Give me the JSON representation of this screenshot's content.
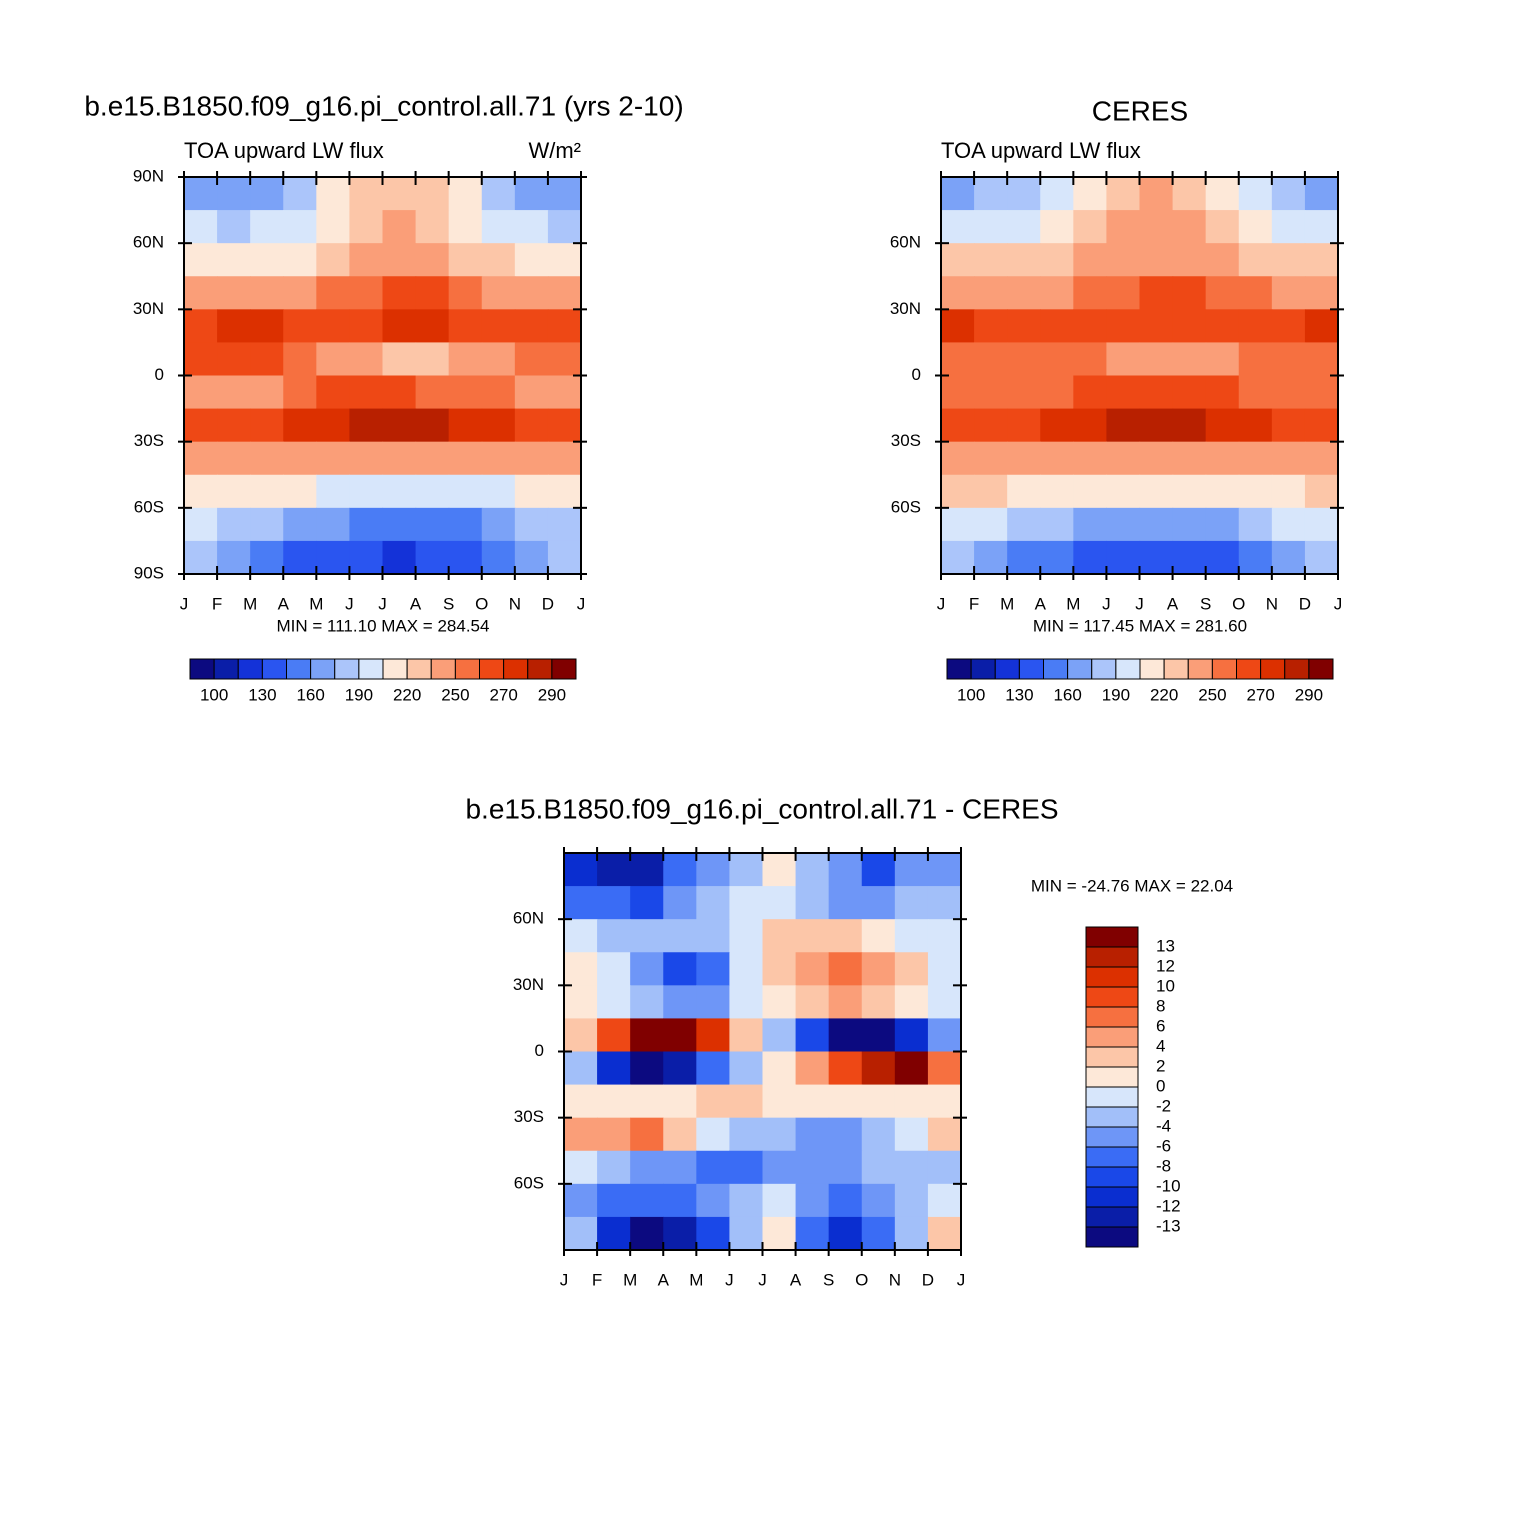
{
  "chart_data": [
    {
      "type": "heatmap",
      "title": "b.e15.B1850.f09_g16.pi_control.all.71 (yrs 2-10)",
      "subtitle_left": "TOA upward LW flux",
      "subtitle_right": "W/m²",
      "stats": "MIN = 111.10 MAX = 284.54",
      "xlim": [
        0,
        12
      ],
      "ylim": [
        -90,
        90
      ],
      "xticks": [
        {
          "value": 0,
          "label": "J"
        },
        {
          "value": 1,
          "label": "F"
        },
        {
          "value": 2,
          "label": "M"
        },
        {
          "value": 3,
          "label": "A"
        },
        {
          "value": 4,
          "label": "M"
        },
        {
          "value": 5,
          "label": "J"
        },
        {
          "value": 6,
          "label": "J"
        },
        {
          "value": 7,
          "label": "A"
        },
        {
          "value": 8,
          "label": "S"
        },
        {
          "value": 9,
          "label": "O"
        },
        {
          "value": 10,
          "label": "N"
        },
        {
          "value": 11,
          "label": "D"
        },
        {
          "value": 12,
          "label": "J"
        }
      ],
      "yticks": [
        {
          "value": 90,
          "label": "90N"
        },
        {
          "value": 60,
          "label": "60N"
        },
        {
          "value": 30,
          "label": "30N"
        },
        {
          "value": 0,
          "label": "0"
        },
        {
          "value": -30,
          "label": "30S"
        },
        {
          "value": -60,
          "label": "60S"
        },
        {
          "value": -90,
          "label": "90S"
        }
      ],
      "x": [
        0.5,
        1.5,
        2.5,
        3.5,
        4.5,
        5.5,
        6.5,
        7.5,
        8.5,
        9.5,
        10.5,
        11.5
      ],
      "y": [
        82.5,
        67.5,
        52.5,
        37.5,
        22.5,
        7.5,
        -7.5,
        -22.5,
        -37.5,
        -52.5,
        -67.5,
        -82.5
      ],
      "values": [
        [
          165,
          160,
          165,
          180,
          205,
          225,
          230,
          225,
          205,
          185,
          170,
          165
        ],
        [
          190,
          185,
          190,
          200,
          215,
          230,
          235,
          230,
          215,
          200,
          190,
          188
        ],
        [
          215,
          212,
          212,
          218,
          228,
          238,
          242,
          240,
          232,
          222,
          216,
          215
        ],
        [
          240,
          240,
          240,
          243,
          250,
          258,
          262,
          262,
          255,
          248,
          243,
          241
        ],
        [
          268,
          270,
          272,
          268,
          266,
          266,
          270,
          270,
          268,
          266,
          265,
          266
        ],
        [
          262,
          265,
          262,
          255,
          246,
          238,
          232,
          234,
          240,
          248,
          254,
          258
        ],
        [
          245,
          242,
          245,
          255,
          262,
          262,
          260,
          258,
          255,
          250,
          248,
          246
        ],
        [
          262,
          265,
          266,
          272,
          276,
          282,
          282,
          281,
          276,
          270,
          266,
          263
        ],
        [
          245,
          245,
          242,
          240,
          238,
          238,
          238,
          238,
          240,
          242,
          244,
          245
        ],
        [
          215,
          212,
          210,
          205,
          200,
          198,
          196,
          196,
          198,
          202,
          208,
          212
        ],
        [
          190,
          180,
          175,
          165,
          160,
          158,
          155,
          155,
          158,
          165,
          175,
          185
        ],
        [
          180,
          165,
          150,
          140,
          135,
          130,
          128,
          130,
          135,
          145,
          160,
          175
        ]
      ],
      "colorbar": {
        "orientation": "horizontal",
        "ticks": [
          100,
          130,
          160,
          190,
          220,
          250,
          270,
          290
        ],
        "colors": [
          "#0c0a80",
          "#0a1ea8",
          "#1432d8",
          "#2a55f0",
          "#4a7cf5",
          "#7ba2f7",
          "#abc5fa",
          "#d7e6fb",
          "#fde8d8",
          "#fcc6a8",
          "#fa9e78",
          "#f67040",
          "#ee4815",
          "#dc3000",
          "#b82000",
          "#800000"
        ]
      }
    },
    {
      "type": "heatmap",
      "title": "CERES",
      "subtitle_left": "TOA upward LW flux",
      "stats": "MIN = 117.45 MAX = 281.60",
      "xlim": [
        0,
        12
      ],
      "ylim": [
        -90,
        90
      ],
      "xticks": [
        {
          "value": 0,
          "label": "J"
        },
        {
          "value": 1,
          "label": "F"
        },
        {
          "value": 2,
          "label": "M"
        },
        {
          "value": 3,
          "label": "A"
        },
        {
          "value": 4,
          "label": "M"
        },
        {
          "value": 5,
          "label": "J"
        },
        {
          "value": 6,
          "label": "J"
        },
        {
          "value": 7,
          "label": "A"
        },
        {
          "value": 8,
          "label": "S"
        },
        {
          "value": 9,
          "label": "O"
        },
        {
          "value": 10,
          "label": "N"
        },
        {
          "value": 11,
          "label": "D"
        },
        {
          "value": 12,
          "label": "J"
        }
      ],
      "yticks": [
        {
          "value": 60,
          "label": "60N"
        },
        {
          "value": 30,
          "label": "30N"
        },
        {
          "value": 0,
          "label": "0"
        },
        {
          "value": -30,
          "label": "30S"
        },
        {
          "value": -60,
          "label": "60S"
        }
      ],
      "x": [
        0.5,
        1.5,
        2.5,
        3.5,
        4.5,
        5.5,
        6.5,
        7.5,
        8.5,
        9.5,
        10.5,
        11.5
      ],
      "y": [
        82.5,
        67.5,
        52.5,
        37.5,
        22.5,
        7.5,
        -7.5,
        -22.5,
        -37.5,
        -52.5,
        -67.5,
        -82.5
      ],
      "values": [
        [
          170,
          175,
          180,
          200,
          215,
          230,
          235,
          230,
          210,
          190,
          180,
          170
        ],
        [
          195,
          195,
          198,
          208,
          222,
          235,
          240,
          236,
          222,
          208,
          198,
          195
        ],
        [
          220,
          220,
          222,
          228,
          236,
          242,
          245,
          243,
          236,
          228,
          222,
          220
        ],
        [
          245,
          245,
          245,
          248,
          252,
          258,
          262,
          260,
          254,
          250,
          247,
          245
        ],
        [
          272,
          268,
          265,
          263,
          264,
          266,
          268,
          268,
          266,
          265,
          268,
          272
        ],
        [
          258,
          256,
          254,
          252,
          250,
          245,
          242,
          243,
          247,
          250,
          254,
          256
        ],
        [
          252,
          252,
          255,
          258,
          260,
          262,
          262,
          262,
          260,
          258,
          254,
          252
        ],
        [
          262,
          264,
          266,
          270,
          275,
          282,
          284,
          282,
          275,
          270,
          266,
          263
        ],
        [
          248,
          246,
          244,
          242,
          240,
          240,
          240,
          240,
          242,
          244,
          246,
          248
        ],
        [
          225,
          222,
          218,
          214,
          210,
          208,
          206,
          207,
          210,
          214,
          218,
          222
        ],
        [
          200,
          192,
          185,
          178,
          172,
          168,
          166,
          168,
          172,
          180,
          190,
          198
        ],
        [
          185,
          170,
          155,
          145,
          138,
          132,
          130,
          132,
          140,
          150,
          168,
          182
        ]
      ],
      "colorbar": {
        "orientation": "horizontal",
        "ticks": [
          100,
          130,
          160,
          190,
          220,
          250,
          270,
          290
        ],
        "colors": [
          "#0c0a80",
          "#0a1ea8",
          "#1432d8",
          "#2a55f0",
          "#4a7cf5",
          "#7ba2f7",
          "#abc5fa",
          "#d7e6fb",
          "#fde8d8",
          "#fcc6a8",
          "#fa9e78",
          "#f67040",
          "#ee4815",
          "#dc3000",
          "#b82000",
          "#800000"
        ]
      }
    },
    {
      "type": "heatmap",
      "title": "b.e15.B1850.f09_g16.pi_control.all.71 - CERES",
      "stats": "MIN = -24.76 MAX =  22.04",
      "xlim": [
        0,
        12
      ],
      "ylim": [
        -90,
        90
      ],
      "xticks": [
        {
          "value": 0,
          "label": "J"
        },
        {
          "value": 1,
          "label": "F"
        },
        {
          "value": 2,
          "label": "M"
        },
        {
          "value": 3,
          "label": "A"
        },
        {
          "value": 4,
          "label": "M"
        },
        {
          "value": 5,
          "label": "J"
        },
        {
          "value": 6,
          "label": "J"
        },
        {
          "value": 7,
          "label": "A"
        },
        {
          "value": 8,
          "label": "S"
        },
        {
          "value": 9,
          "label": "O"
        },
        {
          "value": 10,
          "label": "N"
        },
        {
          "value": 11,
          "label": "D"
        },
        {
          "value": 12,
          "label": "J"
        }
      ],
      "yticks": [
        {
          "value": 60,
          "label": "60N"
        },
        {
          "value": 30,
          "label": "30N"
        },
        {
          "value": 0,
          "label": "0"
        },
        {
          "value": -30,
          "label": "30S"
        },
        {
          "value": -60,
          "label": "60S"
        }
      ],
      "x": [
        0.5,
        1.5,
        2.5,
        3.5,
        4.5,
        5.5,
        6.5,
        7.5,
        8.5,
        9.5,
        10.5,
        11.5
      ],
      "y": [
        82.5,
        67.5,
        52.5,
        37.5,
        22.5,
        7.5,
        -7.5,
        -22.5,
        -37.5,
        -52.5,
        -67.5,
        -82.5
      ],
      "values": [
        [
          -12,
          -13,
          -13,
          -8,
          -6,
          -3,
          0,
          -4,
          -6,
          -9,
          -6,
          -6
        ],
        [
          -8,
          -8,
          -10,
          -6,
          -4,
          -2,
          -2,
          -4,
          -6,
          -5,
          -4,
          -4
        ],
        [
          -2,
          -4,
          -4,
          -4,
          -4,
          -1,
          2,
          2,
          2,
          0,
          -2,
          -2
        ],
        [
          0,
          -2,
          -6,
          -9,
          -8,
          -2,
          2,
          4,
          7,
          5,
          3,
          -1
        ],
        [
          0,
          -2,
          -4,
          -6,
          -5,
          -1,
          0,
          2,
          4,
          3,
          1,
          -1
        ],
        [
          2,
          8,
          14,
          14,
          10,
          2,
          -4,
          -10,
          -14,
          -14,
          -12,
          -6
        ],
        [
          -4,
          -12,
          -14,
          -13,
          -8,
          -3,
          0,
          4,
          9,
          12,
          13,
          6
        ],
        [
          0,
          1,
          1,
          1,
          2,
          2,
          1,
          1,
          0,
          1,
          0,
          0
        ],
        [
          4,
          5,
          6,
          2,
          -1,
          -3,
          -4,
          -6,
          -6,
          -4,
          -2,
          2
        ],
        [
          -2,
          -4,
          -5,
          -6,
          -8,
          -7,
          -6,
          -5,
          -5,
          -4,
          -4,
          -3
        ],
        [
          -6,
          -8,
          -8,
          -8,
          -6,
          -4,
          -2,
          -6,
          -8,
          -6,
          -4,
          -2
        ],
        [
          -4,
          -12,
          -14,
          -13,
          -10,
          -3,
          0,
          -8,
          -12,
          -8,
          -3,
          2
        ]
      ],
      "colorbar": {
        "orientation": "vertical",
        "ticks": [
          -13,
          -12,
          -10,
          -8,
          -6,
          -4,
          -2,
          0,
          2,
          4,
          6,
          8,
          10,
          12,
          13
        ],
        "colors": [
          "#0c0a80",
          "#0a1ea8",
          "#0a2ed0",
          "#1a48e8",
          "#3a6cf5",
          "#6e96f7",
          "#a2bff9",
          "#d7e6fb",
          "#fde8d8",
          "#fcc6a8",
          "#fa9e78",
          "#f67040",
          "#ee4815",
          "#dc3000",
          "#b82000",
          "#800000"
        ]
      }
    }
  ]
}
